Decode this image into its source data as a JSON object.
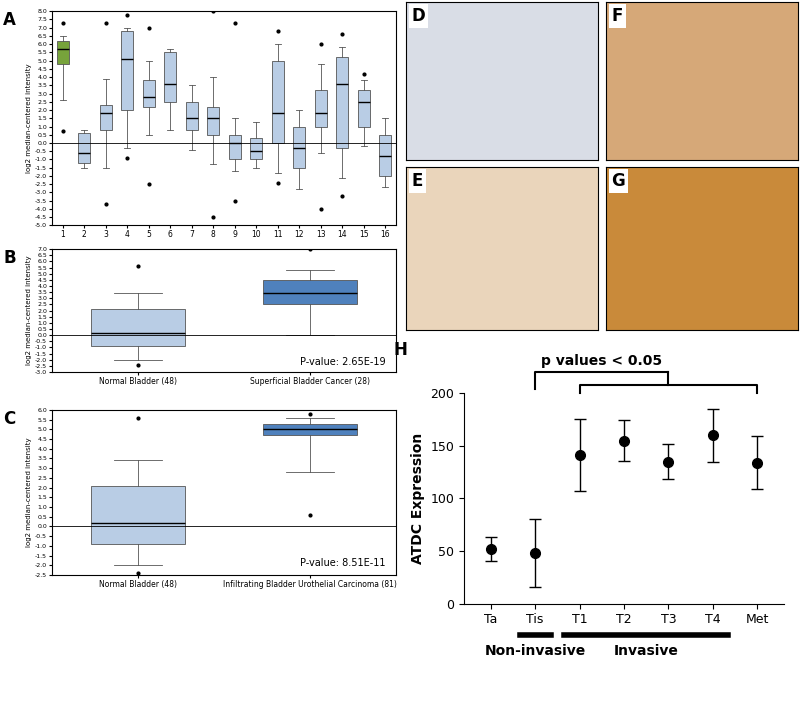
{
  "chart_data": [
    {
      "type": "box",
      "title": "A",
      "y_label": "log2 median-centered intensity",
      "categories": [
        "1",
        "2",
        "3",
        "4",
        "5",
        "6",
        "7",
        "8",
        "9",
        "10",
        "11",
        "12",
        "13",
        "14",
        "15",
        "16"
      ],
      "boxes": [
        {
          "whislo": 2.6,
          "q1": 4.8,
          "med": 5.7,
          "q3": 6.2,
          "whishi": 6.5,
          "fliers": [
            7.3,
            0.7
          ]
        },
        {
          "whislo": -1.5,
          "q1": -1.2,
          "med": -0.6,
          "q3": 0.6,
          "whishi": 0.8,
          "fliers": []
        },
        {
          "whislo": -1.5,
          "q1": 0.8,
          "med": 1.8,
          "q3": 2.3,
          "whishi": 3.9,
          "fliers": [
            7.3,
            -3.7
          ]
        },
        {
          "whislo": -0.3,
          "q1": 2.0,
          "med": 5.1,
          "q3": 6.8,
          "whishi": 7.0,
          "fliers": [
            7.8,
            -0.9
          ]
        },
        {
          "whislo": 0.5,
          "q1": 2.2,
          "med": 2.8,
          "q3": 3.8,
          "whishi": 5.0,
          "fliers": [
            7.0,
            -2.5
          ]
        },
        {
          "whislo": 0.8,
          "q1": 2.5,
          "med": 3.6,
          "q3": 5.5,
          "whishi": 5.7,
          "fliers": []
        },
        {
          "whislo": -0.4,
          "q1": 0.8,
          "med": 1.5,
          "q3": 2.5,
          "whishi": 3.5,
          "fliers": []
        },
        {
          "whislo": -1.3,
          "q1": 0.5,
          "med": 1.5,
          "q3": 2.2,
          "whishi": 4.0,
          "fliers": [
            8.0,
            -4.5
          ]
        },
        {
          "whislo": -1.7,
          "q1": -1.0,
          "med": 0.0,
          "q3": 0.5,
          "whishi": 1.5,
          "fliers": [
            7.3,
            -3.5
          ]
        },
        {
          "whislo": -1.5,
          "q1": -1.0,
          "med": -0.5,
          "q3": 0.3,
          "whishi": 1.3,
          "fliers": []
        },
        {
          "whislo": -1.8,
          "q1": 0.0,
          "med": 1.8,
          "q3": 5.0,
          "whishi": 6.0,
          "fliers": [
            6.8,
            -2.4
          ]
        },
        {
          "whislo": -2.8,
          "q1": -1.5,
          "med": -0.3,
          "q3": 1.0,
          "whishi": 2.0,
          "fliers": []
        },
        {
          "whislo": -0.6,
          "q1": 1.0,
          "med": 1.8,
          "q3": 3.2,
          "whishi": 4.8,
          "fliers": [
            6.0,
            -4.0
          ]
        },
        {
          "whislo": -2.1,
          "q1": -0.3,
          "med": 3.6,
          "q3": 5.2,
          "whishi": 5.8,
          "fliers": [
            6.6,
            -3.2
          ]
        },
        {
          "whislo": -0.2,
          "q1": 1.0,
          "med": 2.5,
          "q3": 3.2,
          "whishi": 3.8,
          "fliers": [
            4.2
          ]
        },
        {
          "whislo": -2.7,
          "q1": -2.0,
          "med": -0.8,
          "q3": 0.5,
          "whishi": 1.5,
          "fliers": []
        }
      ],
      "colors": [
        "#77a33b",
        "#b9cde5",
        "#b9cde5",
        "#b9cde5",
        "#b9cde5",
        "#b9cde5",
        "#b9cde5",
        "#b9cde5",
        "#b9cde5",
        "#b9cde5",
        "#b9cde5",
        "#b9cde5",
        "#b9cde5",
        "#b9cde5",
        "#b9cde5",
        "#b9cde5"
      ],
      "baseline": 0,
      "ylim": [
        -5.0,
        8.0
      ],
      "yticks": [
        {
          "value": -5.0,
          "label": "-5.0"
        },
        -4.5,
        {
          "value": -4.0,
          "label": "-4.0"
        },
        -3.5,
        {
          "value": -3.0,
          "label": "-3.0"
        },
        -2.5,
        {
          "value": -2.0,
          "label": "-2.0"
        },
        -1.5,
        {
          "value": -1.0,
          "label": "-1.0"
        },
        -0.5,
        {
          "value": 0.0,
          "label": "0.0"
        },
        0.5,
        {
          "value": 1.0,
          "label": "1.0"
        },
        1.5,
        {
          "value": 2.0,
          "label": "2.0"
        },
        2.5,
        {
          "value": 3.0,
          "label": "3.0"
        },
        3.5,
        {
          "value": 4.0,
          "label": "4.0"
        },
        4.5,
        {
          "value": 5.0,
          "label": "5.0"
        },
        5.5,
        {
          "value": 6.0,
          "label": "6.0"
        },
        6.5,
        {
          "value": 7.0,
          "label": "7.0"
        },
        7.5,
        {
          "value": 8.0,
          "label": "8.0"
        }
      ]
    },
    {
      "type": "box",
      "title": "B",
      "y_label": "log2 median-centered intensity",
      "categories": [
        "Normal Bladder (48)",
        "Superficial Bladder Cancer (28)"
      ],
      "boxes": [
        {
          "whislo": -2.0,
          "q1": -0.9,
          "med": 0.2,
          "q3": 2.1,
          "whishi": 3.4,
          "fliers": [
            5.6,
            -2.4
          ]
        },
        {
          "whislo": 0.0,
          "q1": 2.5,
          "med": 3.4,
          "q3": 4.5,
          "whishi": 5.3,
          "fliers": [
            7.0
          ]
        }
      ],
      "colors": [
        "#b9cde5",
        "#4f81bd"
      ],
      "baseline": 0,
      "annotation": "P-value: 2.65E-19",
      "ylim": [
        -3.0,
        7.0
      ],
      "yticks": [
        {
          "value": -3.0,
          "label": "-3.0"
        },
        -2.5,
        {
          "value": -2.0,
          "label": "-2.0"
        },
        -1.5,
        {
          "value": -1.0,
          "label": "-1.0"
        },
        -0.5,
        {
          "value": 0.0,
          "label": "0.0"
        },
        0.5,
        {
          "value": 1.0,
          "label": "1.0"
        },
        1.5,
        {
          "value": 2.0,
          "label": "2.0"
        },
        2.5,
        {
          "value": 3.0,
          "label": "3.0"
        },
        3.5,
        {
          "value": 4.0,
          "label": "4.0"
        },
        4.5,
        {
          "value": 5.0,
          "label": "5.0"
        },
        5.5,
        {
          "value": 6.0,
          "label": "6.0"
        },
        6.5,
        {
          "value": 7.0,
          "label": "7.0"
        }
      ]
    },
    {
      "type": "box",
      "title": "C",
      "y_label": "log2 median-centered intensity",
      "categories": [
        "Normal Bladder (48)",
        "Infiltrating Bladder Urothelial Carcinoma (81)"
      ],
      "boxes": [
        {
          "whislo": -2.0,
          "q1": -0.9,
          "med": 0.2,
          "q3": 2.1,
          "whishi": 3.4,
          "fliers": [
            5.6,
            -2.4
          ]
        },
        {
          "whislo": 2.8,
          "q1": 4.7,
          "med": 5.0,
          "q3": 5.3,
          "whishi": 5.6,
          "fliers": [
            5.8,
            0.6
          ]
        }
      ],
      "colors": [
        "#b9cde5",
        "#4f81bd"
      ],
      "baseline": 0,
      "annotation": "P-value: 8.51E-11",
      "ylim": [
        -2.5,
        6.0
      ],
      "yticks": [
        -2.5,
        {
          "value": -2.0,
          "label": "-2.0"
        },
        -1.5,
        {
          "value": -1.0,
          "label": "-1.0"
        },
        -0.5,
        {
          "value": 0.0,
          "label": "0.0"
        },
        0.5,
        {
          "value": 1.0,
          "label": "1.0"
        },
        1.5,
        {
          "value": 2.0,
          "label": "2.0"
        },
        2.5,
        {
          "value": 3.0,
          "label": "3.0"
        },
        3.5,
        {
          "value": 4.0,
          "label": "4.0"
        },
        4.5,
        {
          "value": 5.0,
          "label": "5.0"
        },
        5.5,
        {
          "value": 6.0,
          "label": "6.0"
        }
      ]
    },
    {
      "type": "image",
      "title": "D",
      "color": "#d9dde6"
    },
    {
      "type": "image",
      "title": "E",
      "color": "#ead5bb"
    },
    {
      "type": "image",
      "title": "F",
      "color": "#d6a878"
    },
    {
      "type": "image",
      "title": "G",
      "color": "#c98a3a"
    },
    {
      "type": "scatter",
      "title": "H",
      "y_label": "ATDC Expression",
      "categories": [
        "Ta",
        "Tis",
        "T1",
        "T2",
        "T3",
        "T4",
        "Met"
      ],
      "values": [
        52,
        48,
        141,
        155,
        135,
        160,
        134
      ],
      "errors": [
        11,
        32,
        34,
        19,
        17,
        25,
        25
      ],
      "marker": "circle",
      "color": "#000000",
      "ylim": [
        0,
        200
      ],
      "yticks": [
        0,
        50,
        100,
        150,
        200
      ],
      "groups": [
        {
          "label": "Non-invasive",
          "categories": [
            "Tis"
          ]
        },
        {
          "label": "Invasive",
          "categories": [
            "T1",
            "T4"
          ]
        }
      ],
      "comparison": {
        "label": "p values < 0.05",
        "from": "Tis",
        "to": [
          "T1",
          "Met"
        ]
      }
    }
  ]
}
